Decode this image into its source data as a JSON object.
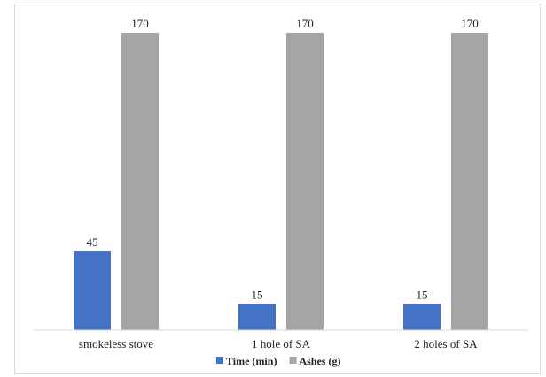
{
  "chart_data": {
    "type": "bar",
    "title": "",
    "xlabel": "",
    "ylabel": "",
    "ylim": [
      0,
      180
    ],
    "grid": false,
    "legend_position": "bottom",
    "categories": [
      "smokeless stove",
      "1 hole of SA",
      "2 holes of SA"
    ],
    "series": [
      {
        "name": "Time (min)",
        "color": "#4472c4",
        "values": [
          45,
          15,
          15
        ]
      },
      {
        "name": "Ashes (g)",
        "color": "#a5a5a5",
        "values": [
          170,
          170,
          170
        ]
      }
    ]
  }
}
